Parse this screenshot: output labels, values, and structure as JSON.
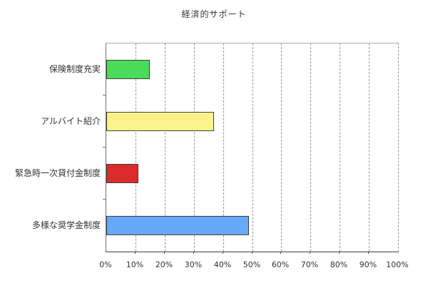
{
  "chart_data": {
    "type": "bar",
    "orientation": "horizontal",
    "title": "経済的サポート",
    "categories": [
      "保険制度充実",
      "アルバイト紹介",
      "緊急時一次貸付金制度",
      "多様な奨学金制度"
    ],
    "values": [
      15,
      37,
      11,
      49
    ],
    "bar_colors": [
      "#4bdb5b",
      "#fcf28c",
      "#dc2b2b",
      "#66a9f8"
    ],
    "xlabel": "",
    "ylabel": "",
    "xlim": [
      0,
      100
    ],
    "xticks": [
      0,
      10,
      20,
      30,
      40,
      50,
      60,
      70,
      80,
      90,
      100
    ],
    "xtick_labels": [
      "0%",
      "10%",
      "20%",
      "30%",
      "40%",
      "50%",
      "60%",
      "70%",
      "80%",
      "90%",
      "100%"
    ],
    "grid": "vertical-dashed",
    "legend": "none"
  },
  "colors": {
    "background": "#ffffff",
    "bar_border": "#404040",
    "gridline": "#999999",
    "axis_left": "#707070",
    "axis_bottom": "#404040",
    "plot_border_top_right": "#aaaaaa",
    "text": "#333333"
  }
}
